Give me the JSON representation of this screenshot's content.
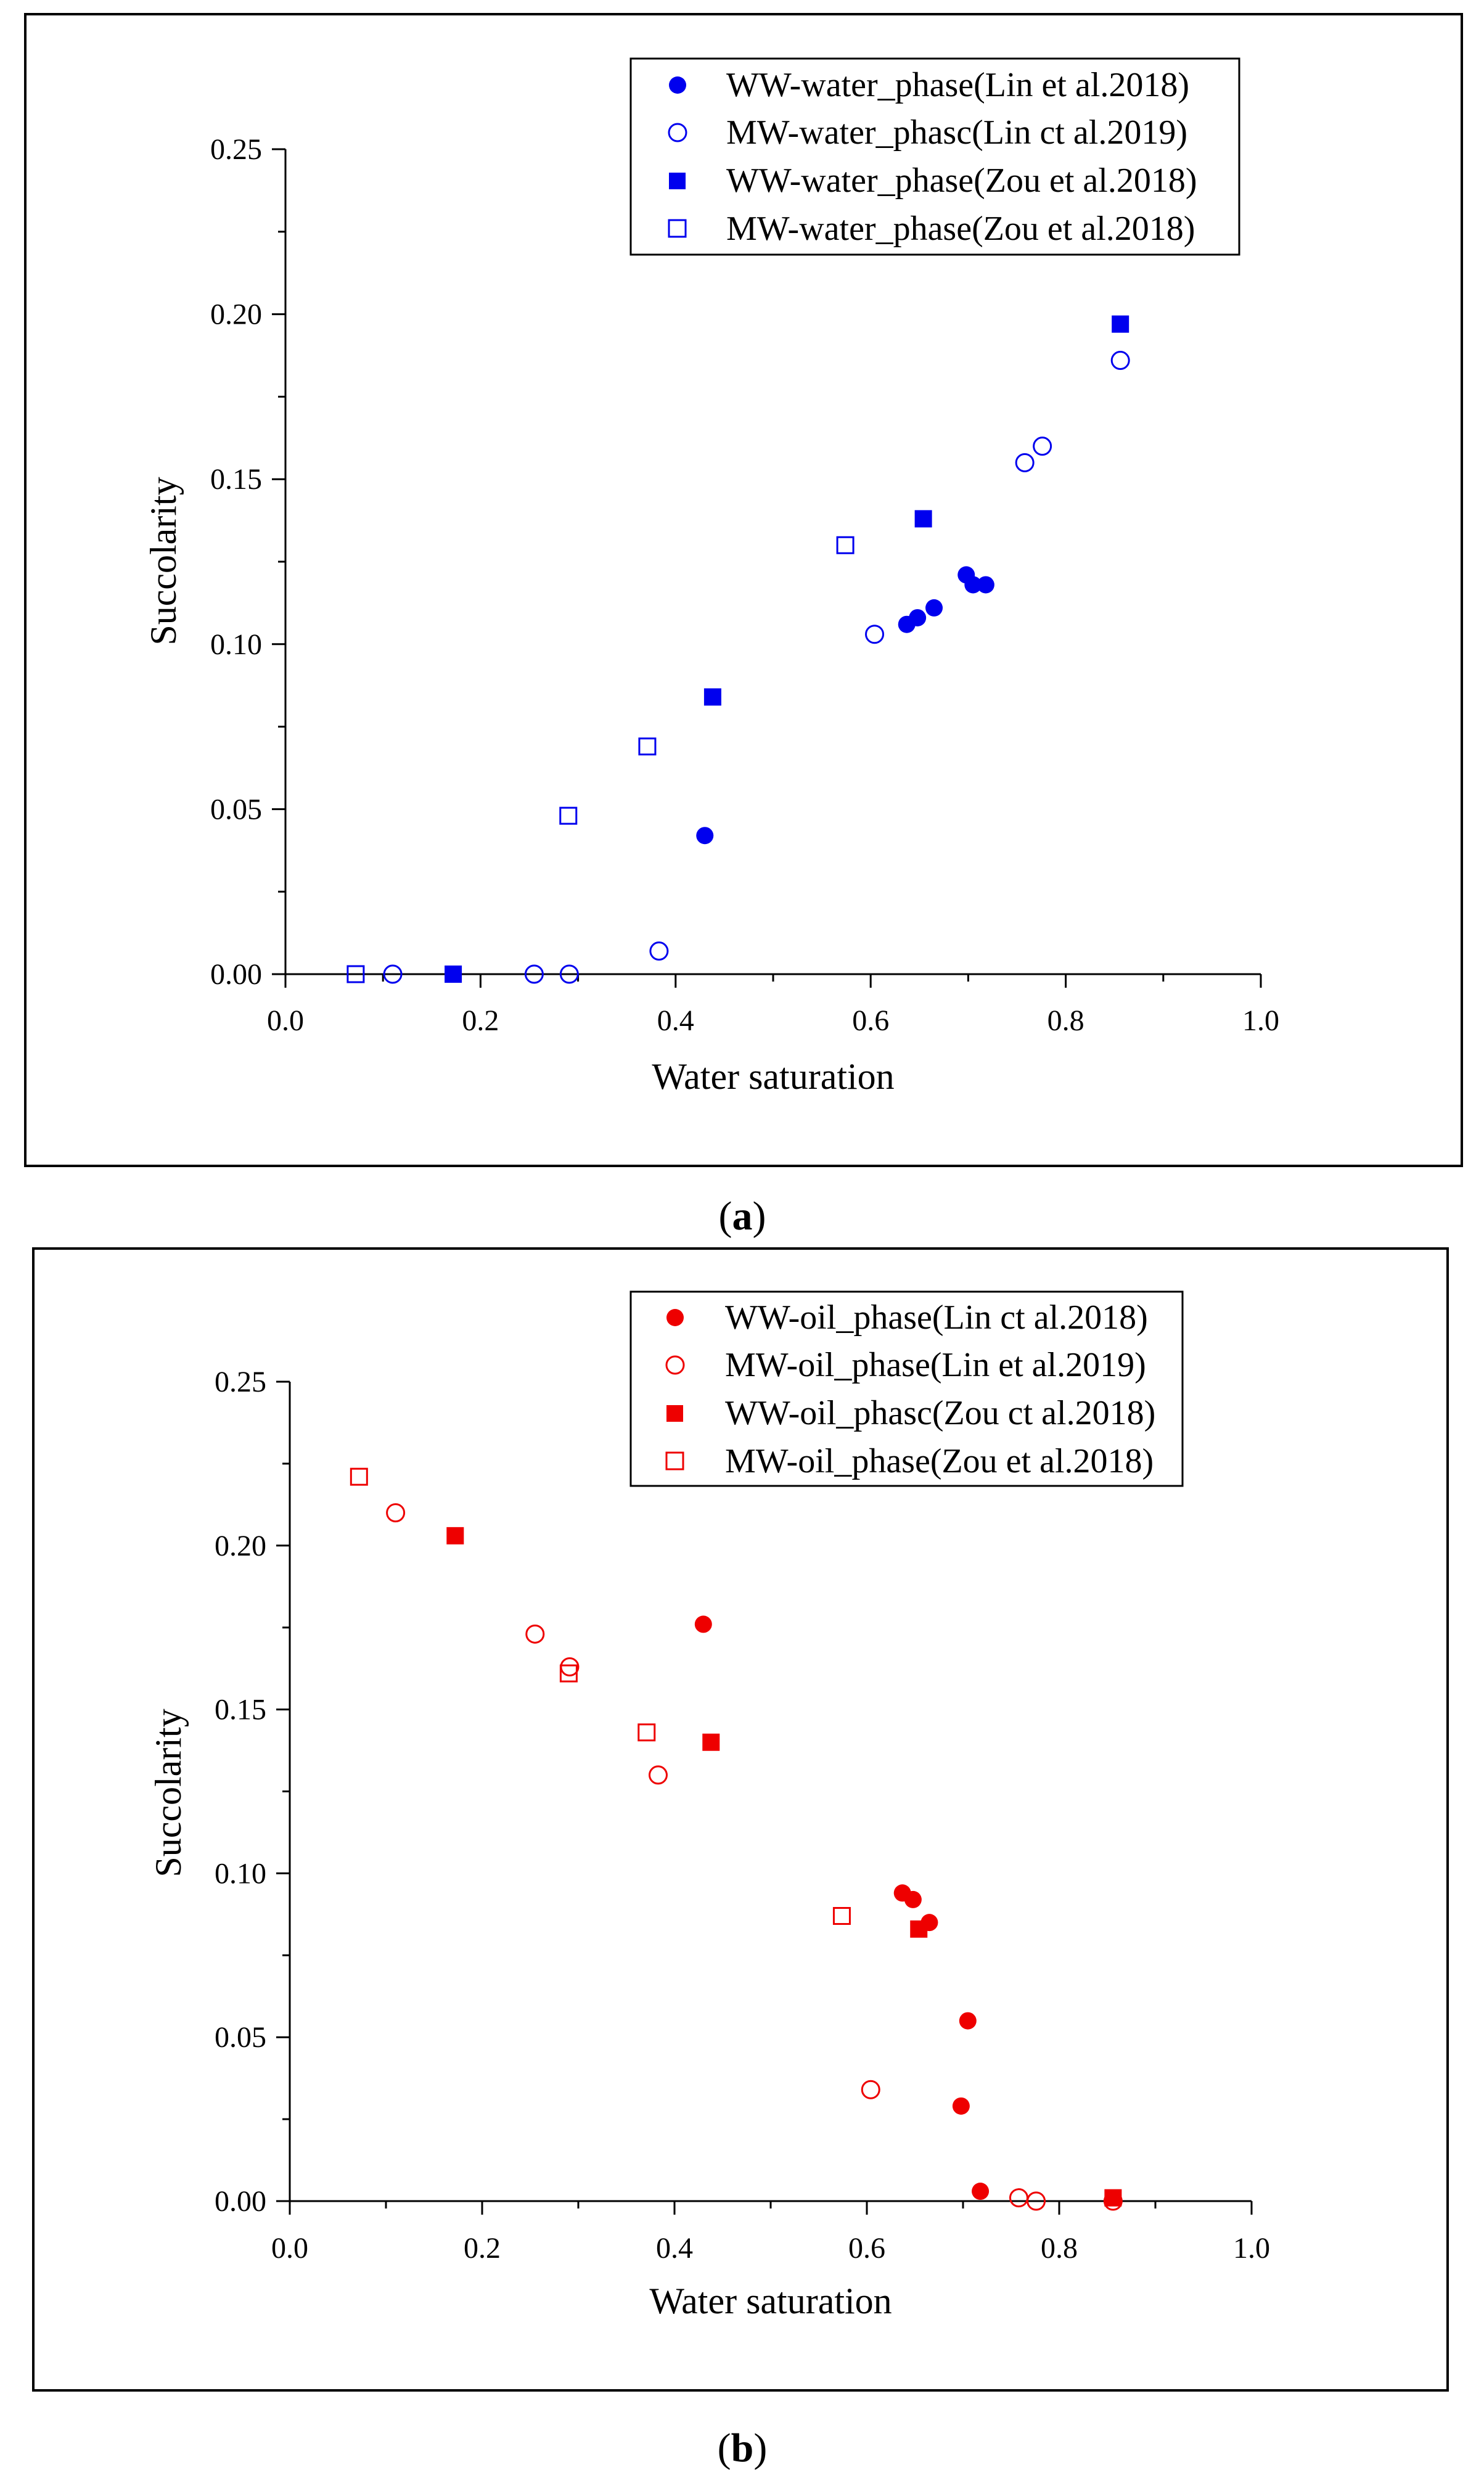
{
  "chart_data": [
    {
      "panel_label": "a",
      "type": "scatter",
      "title": "",
      "xlabel": "Water saturation",
      "ylabel": "Succolarity",
      "xlim": [
        0,
        1
      ],
      "ylim": [
        0,
        0.25
      ],
      "x_ticks": [
        "0.0",
        "0.2",
        "0.4",
        "0.6",
        "0.8",
        "1.0"
      ],
      "y_ticks": [
        "0.00",
        "0.05",
        "0.10",
        "0.15",
        "0.20",
        "0.25"
      ],
      "color": "#0000ee",
      "series": [
        {
          "name": "WW-water_phase(Lin et al.2018)",
          "marker": "filled-circle",
          "x": [
            0.43,
            0.637,
            0.648,
            0.665,
            0.698,
            0.705,
            0.718
          ],
          "y": [
            0.042,
            0.106,
            0.108,
            0.111,
            0.121,
            0.118,
            0.118
          ]
        },
        {
          "name": "MW-water_phasc(Lin ct al.2019)",
          "marker": "open-circle",
          "x": [
            0.11,
            0.255,
            0.291,
            0.383,
            0.604,
            0.758,
            0.776,
            0.856
          ],
          "y": [
            0.0,
            0.0,
            0.0,
            0.007,
            0.103,
            0.155,
            0.16,
            0.186
          ]
        },
        {
          "name": "WW-water_phase(Zou et al.2018)",
          "marker": "filled-square",
          "x": [
            0.172,
            0.438,
            0.654,
            0.856
          ],
          "y": [
            0.0,
            0.084,
            0.138,
            0.197
          ]
        },
        {
          "name": "MW-water_phase(Zou et al.2018)",
          "marker": "open-square",
          "x": [
            0.072,
            0.29,
            0.371,
            0.574
          ],
          "y": [
            0.0,
            0.048,
            0.069,
            0.13
          ]
        }
      ]
    },
    {
      "panel_label": "b",
      "type": "scatter",
      "title": "",
      "xlabel": "Water saturation",
      "ylabel": "Succolarity",
      "xlim": [
        0,
        1
      ],
      "ylim": [
        0,
        0.25
      ],
      "x_ticks": [
        "0.0",
        "0.2",
        "0.4",
        "0.6",
        "0.8",
        "1.0"
      ],
      "y_ticks": [
        "0.00",
        "0.05",
        "0.10",
        "0.15",
        "0.20",
        "0.25"
      ],
      "color": "#ee0000",
      "series": [
        {
          "name": "WW-oil_phase(Lin ct al.2018)",
          "marker": "filled-circle",
          "x": [
            0.43,
            0.637,
            0.648,
            0.665,
            0.698,
            0.705,
            0.718
          ],
          "y": [
            0.176,
            0.094,
            0.092,
            0.085,
            0.029,
            0.055,
            0.003
          ]
        },
        {
          "name": "MW-oil_phase(Lin et al.2019)",
          "marker": "open-circle",
          "x": [
            0.11,
            0.255,
            0.291,
            0.383,
            0.604,
            0.758,
            0.776,
            0.856
          ],
          "y": [
            0.21,
            0.173,
            0.163,
            0.13,
            0.034,
            0.001,
            0.0,
            0.0
          ]
        },
        {
          "name": "WW-oil_phasc(Zou ct al.2018)",
          "marker": "filled-square",
          "x": [
            0.172,
            0.438,
            0.654,
            0.856
          ],
          "y": [
            0.203,
            0.14,
            0.083,
            0.001
          ]
        },
        {
          "name": "MW-oil_phase(Zou et al.2018)",
          "marker": "open-square",
          "x": [
            0.072,
            0.29,
            0.371,
            0.574
          ],
          "y": [
            0.221,
            0.161,
            0.143,
            0.087
          ]
        }
      ]
    }
  ]
}
